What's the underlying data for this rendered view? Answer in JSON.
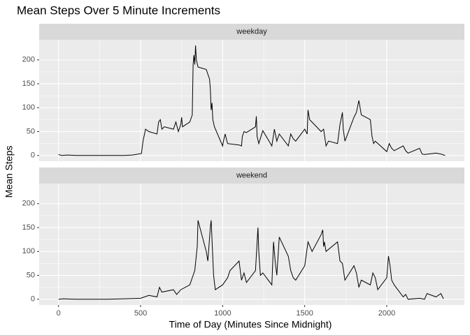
{
  "chart_data": {
    "type": "line",
    "title": "Mean Steps Over 5 Minute Increments",
    "xlabel": "Time of Day (Minutes Since Midnight)",
    "ylabel": "Mean Steps",
    "xlim": [
      -118,
      2473
    ],
    "xticks": [
      0,
      500,
      1000,
      1500,
      2000
    ],
    "ylim": [
      -12,
      242
    ],
    "yticks": [
      0,
      50,
      100,
      150,
      200
    ],
    "grid": true,
    "series": [
      {
        "name": "weekday",
        "color": "#000000",
        "x": [
          0,
          20,
          55,
          110,
          200,
          300,
          400,
          450,
          505,
          515,
          530,
          550,
          600,
          610,
          620,
          630,
          645,
          700,
          715,
          730,
          745,
          750,
          755,
          800,
          815,
          820,
          825,
          830,
          835,
          840,
          850,
          900,
          910,
          920,
          925,
          930,
          935,
          940,
          950,
          1000,
          1005,
          1015,
          1030,
          1100,
          1115,
          1120,
          1130,
          1145,
          1200,
          1205,
          1210,
          1220,
          1245,
          1300,
          1315,
          1330,
          1345,
          1400,
          1415,
          1430,
          1445,
          1500,
          1515,
          1520,
          1530,
          1600,
          1615,
          1630,
          1645,
          1700,
          1715,
          1730,
          1735,
          1745,
          1800,
          1815,
          1830,
          1845,
          1900,
          1910,
          1920,
          1930,
          2000,
          2015,
          2030,
          2045,
          2100,
          2115,
          2130,
          2200,
          2215,
          2230,
          2300,
          2330,
          2355
        ],
        "values": [
          2,
          0,
          1,
          0,
          0,
          0,
          0,
          1,
          4,
          30,
          55,
          50,
          45,
          70,
          75,
          55,
          60,
          55,
          70,
          50,
          65,
          80,
          60,
          70,
          85,
          190,
          210,
          190,
          230,
          200,
          185,
          180,
          170,
          160,
          140,
          95,
          110,
          75,
          60,
          20,
          30,
          45,
          25,
          22,
          20,
          40,
          50,
          48,
          60,
          82,
          40,
          25,
          52,
          20,
          55,
          30,
          45,
          20,
          45,
          35,
          30,
          55,
          45,
          95,
          75,
          50,
          55,
          20,
          30,
          25,
          65,
          90,
          55,
          30,
          80,
          90,
          115,
          85,
          75,
          40,
          25,
          30,
          8,
          25,
          15,
          10,
          20,
          10,
          5,
          15,
          3,
          2,
          5,
          3,
          0
        ]
      },
      {
        "name": "weekend",
        "color": "#000000",
        "x": [
          0,
          30,
          100,
          200,
          300,
          400,
          500,
          550,
          600,
          615,
          630,
          700,
          720,
          745,
          800,
          815,
          830,
          845,
          850,
          900,
          910,
          925,
          930,
          945,
          955,
          1000,
          1030,
          1045,
          1100,
          1115,
          1130,
          1145,
          1200,
          1215,
          1220,
          1230,
          1245,
          1300,
          1310,
          1320,
          1330,
          1345,
          1400,
          1415,
          1430,
          1445,
          1500,
          1520,
          1545,
          1600,
          1610,
          1615,
          1620,
          1630,
          1700,
          1715,
          1730,
          1745,
          1800,
          1815,
          1830,
          1845,
          1900,
          1915,
          1930,
          1945,
          2000,
          2010,
          2020,
          2030,
          2045,
          2100,
          2115,
          2130,
          2200,
          2230,
          2245,
          2300,
          2330,
          2345
        ],
        "values": [
          0,
          1,
          0,
          0,
          0,
          1,
          2,
          8,
          5,
          25,
          15,
          20,
          10,
          20,
          30,
          45,
          60,
          110,
          165,
          100,
          80,
          150,
          165,
          50,
          20,
          30,
          45,
          60,
          80,
          40,
          55,
          35,
          60,
          150,
          100,
          50,
          55,
          30,
          120,
          80,
          50,
          130,
          90,
          60,
          45,
          40,
          70,
          120,
          100,
          135,
          145,
          110,
          120,
          100,
          120,
          80,
          75,
          40,
          70,
          55,
          25,
          40,
          30,
          55,
          45,
          20,
          45,
          90,
          70,
          40,
          30,
          5,
          10,
          0,
          2,
          0,
          12,
          5,
          12,
          1
        ]
      }
    ]
  }
}
